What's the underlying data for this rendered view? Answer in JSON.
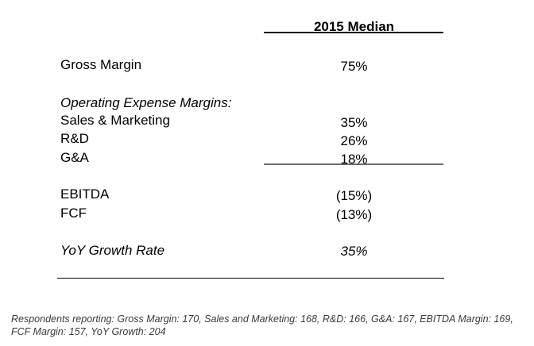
{
  "table": {
    "column_header": "2015 Median",
    "rows": {
      "gross_margin": {
        "label": "Gross Margin",
        "value": "75%"
      },
      "opex_heading": {
        "label": "Operating Expense Margins:"
      },
      "sales_marketing": {
        "label": "Sales & Marketing",
        "value": "35%"
      },
      "rd": {
        "label": "R&D",
        "value": "26%"
      },
      "ga": {
        "label": "G&A",
        "value": "18%"
      },
      "ebitda": {
        "label": "EBITDA",
        "value": "(15%)"
      },
      "fcf": {
        "label": "FCF",
        "value": "(13%)"
      },
      "yoy_growth": {
        "label": "YoY Growth Rate",
        "value": "35%"
      }
    }
  },
  "footnote": "Respondents reporting: Gross Margin: 170, Sales and Marketing: 168, R&D: 166, G&A: 167, EBITDA Margin: 169, FCF Margin: 157, YoY  Growth: 204"
}
